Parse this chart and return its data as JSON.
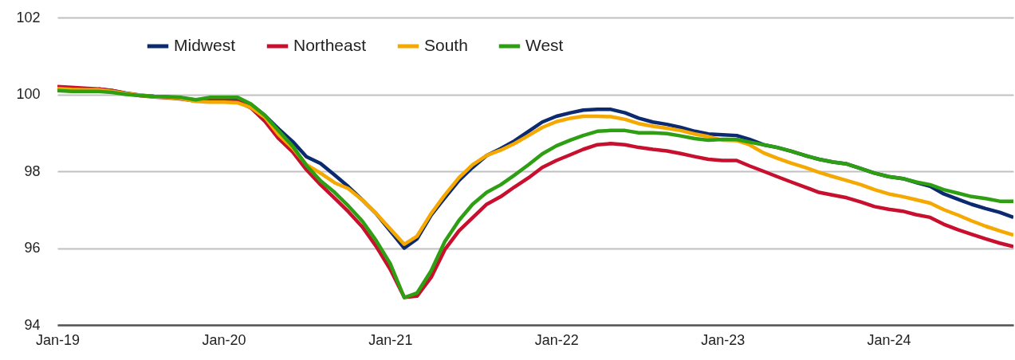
{
  "chart_data": {
    "type": "line",
    "x": [
      "2019-01",
      "2019-02",
      "2019-03",
      "2019-04",
      "2019-05",
      "2019-06",
      "2019-07",
      "2019-08",
      "2019-09",
      "2019-10",
      "2019-11",
      "2019-12",
      "2020-01",
      "2020-02",
      "2020-03",
      "2020-04",
      "2020-05",
      "2020-06",
      "2020-07",
      "2020-08",
      "2020-09",
      "2020-10",
      "2020-11",
      "2020-12",
      "2021-01",
      "2021-02",
      "2021-03",
      "2021-04",
      "2021-05",
      "2021-06",
      "2021-07",
      "2021-08",
      "2021-09",
      "2021-10",
      "2021-11",
      "2021-12",
      "2022-01",
      "2022-02",
      "2022-03",
      "2022-04",
      "2022-05",
      "2022-06",
      "2022-07",
      "2022-08",
      "2022-09",
      "2022-10",
      "2022-11",
      "2022-12",
      "2023-01",
      "2023-02",
      "2023-03",
      "2023-04",
      "2023-05",
      "2023-06",
      "2023-07",
      "2023-08",
      "2023-09",
      "2023-10",
      "2023-11",
      "2023-12",
      "2024-01",
      "2024-02",
      "2024-03",
      "2024-04",
      "2024-05",
      "2024-06",
      "2024-07",
      "2024-08",
      "2024-09",
      "2024-10"
    ],
    "series": [
      {
        "name": "Midwest",
        "color": "#0b2a6f",
        "values": [
          null,
          null,
          null,
          100.14,
          100.1,
          100.03,
          99.98,
          99.95,
          99.93,
          99.9,
          99.85,
          99.88,
          99.9,
          99.9,
          99.74,
          99.45,
          99.1,
          98.77,
          98.38,
          98.2,
          97.9,
          97.6,
          97.25,
          96.9,
          96.45,
          96.0,
          96.24,
          96.86,
          97.31,
          97.76,
          98.1,
          98.41,
          98.59,
          98.79,
          99.04,
          99.28,
          99.43,
          99.52,
          99.59,
          99.61,
          99.61,
          99.52,
          99.38,
          99.28,
          99.22,
          99.14,
          99.04,
          98.97,
          98.95,
          98.93,
          98.83,
          98.69,
          98.62,
          98.52,
          98.41,
          98.31,
          98.24,
          98.19,
          98.07,
          97.95,
          97.86,
          97.81,
          97.71,
          97.61,
          97.41,
          97.27,
          97.14,
          97.03,
          96.93,
          96.8
        ]
      },
      {
        "name": "Northeast",
        "color": "#c8102e",
        "values": [
          100.2,
          100.18,
          100.16,
          100.14,
          100.1,
          100.02,
          99.97,
          99.93,
          99.91,
          99.88,
          99.83,
          99.84,
          99.84,
          99.82,
          99.65,
          99.3,
          98.85,
          98.5,
          98.04,
          97.65,
          97.3,
          96.95,
          96.55,
          96.05,
          95.45,
          94.72,
          94.75,
          95.24,
          95.96,
          96.45,
          96.79,
          97.14,
          97.34,
          97.59,
          97.83,
          98.1,
          98.28,
          98.43,
          98.57,
          98.69,
          98.72,
          98.69,
          98.62,
          98.57,
          98.53,
          98.46,
          98.38,
          98.31,
          98.28,
          98.28,
          98.14,
          98.0,
          97.86,
          97.72,
          97.59,
          97.45,
          97.38,
          97.31,
          97.2,
          97.08,
          97.01,
          96.96,
          96.87,
          96.8,
          96.62,
          96.48,
          96.36,
          96.24,
          96.13,
          96.04
        ]
      },
      {
        "name": "South",
        "color": "#f5a800",
        "values": [
          100.15,
          100.13,
          100.12,
          100.12,
          100.08,
          100.02,
          99.98,
          99.94,
          99.92,
          99.89,
          99.82,
          99.8,
          99.8,
          99.78,
          99.66,
          99.4,
          98.95,
          98.6,
          98.17,
          97.95,
          97.7,
          97.55,
          97.25,
          96.9,
          96.5,
          96.1,
          96.31,
          96.9,
          97.38,
          97.83,
          98.17,
          98.41,
          98.55,
          98.72,
          98.93,
          99.14,
          99.29,
          99.38,
          99.43,
          99.43,
          99.42,
          99.35,
          99.24,
          99.17,
          99.12,
          99.06,
          98.97,
          98.9,
          98.81,
          98.8,
          98.69,
          98.48,
          98.34,
          98.21,
          98.1,
          97.97,
          97.86,
          97.76,
          97.65,
          97.52,
          97.41,
          97.34,
          97.26,
          97.17,
          97.0,
          96.86,
          96.71,
          96.57,
          96.45,
          96.34
        ]
      },
      {
        "name": "West",
        "color": "#2e9e12",
        "values": [
          100.1,
          100.08,
          100.08,
          100.08,
          100.05,
          100.0,
          99.97,
          99.95,
          99.94,
          99.92,
          99.86,
          99.92,
          99.92,
          99.92,
          99.75,
          99.45,
          99.05,
          98.65,
          98.15,
          97.75,
          97.45,
          97.1,
          96.7,
          96.2,
          95.6,
          94.71,
          94.83,
          95.41,
          96.17,
          96.72,
          97.14,
          97.45,
          97.65,
          97.9,
          98.17,
          98.45,
          98.66,
          98.81,
          98.93,
          99.04,
          99.06,
          99.06,
          99.0,
          99.0,
          98.98,
          98.92,
          98.85,
          98.81,
          98.83,
          98.83,
          98.76,
          98.69,
          98.62,
          98.52,
          98.41,
          98.31,
          98.24,
          98.19,
          98.07,
          97.95,
          97.86,
          97.81,
          97.72,
          97.65,
          97.52,
          97.43,
          97.34,
          97.29,
          97.22,
          97.22
        ]
      }
    ],
    "xlim": [
      "2019-01",
      "2024-10"
    ],
    "xticks": [
      {
        "value": "2019-01",
        "label": "Jan-19"
      },
      {
        "value": "2020-01",
        "label": "Jan-20"
      },
      {
        "value": "2021-01",
        "label": "Jan-21"
      },
      {
        "value": "2022-01",
        "label": "Jan-22"
      },
      {
        "value": "2023-01",
        "label": "Jan-23"
      },
      {
        "value": "2024-01",
        "label": "Jan-24"
      }
    ],
    "ylim": [
      94,
      102
    ],
    "yticks": [
      94,
      96,
      98,
      100,
      102
    ],
    "grid": "y",
    "legend": "top left",
    "line_style": "solid"
  }
}
